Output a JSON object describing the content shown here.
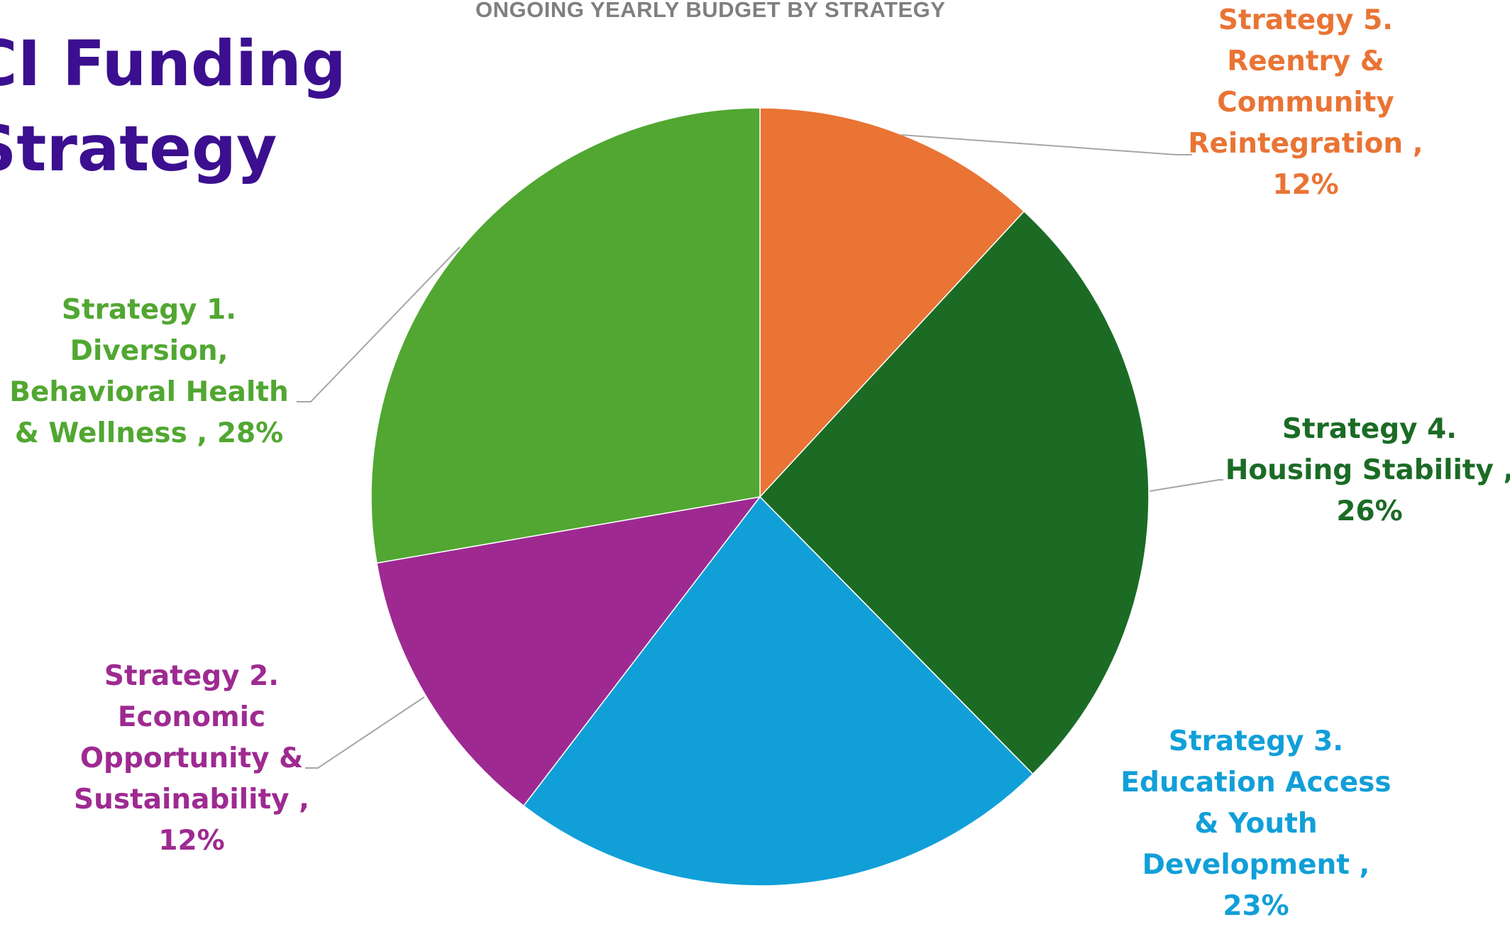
{
  "page": {
    "title_lines": [
      "CI Funding",
      "Strategy"
    ]
  },
  "chart_data": {
    "type": "pie",
    "title": "ONGOING YEARLY BUDGET BY STRATEGY",
    "start_angle_deg": 0,
    "direction": "clockwise",
    "slices": [
      {
        "label": "Strategy 5. Reentry & Community Reintegration",
        "value": 12,
        "value_label": "12%",
        "color": "#e97434",
        "label_lines": [
          "Strategy 5.",
          "Reentry &",
          "Community",
          "Reintegration ,",
          "12%"
        ]
      },
      {
        "label": "Strategy 4. Housing Stability",
        "value": 26,
        "value_label": "26%",
        "color": "#1b6b25",
        "label_lines": [
          "Strategy 4.",
          "Housing Stability ,",
          "26%"
        ]
      },
      {
        "label": "Strategy 3. Education Access & Youth Development",
        "value": 23,
        "value_label": "23%",
        "color": "#119fd8",
        "label_lines": [
          "Strategy 3.",
          "Education Access",
          "& Youth",
          "Development ,",
          "23%"
        ]
      },
      {
        "label": "Strategy 2. Economic Opportunity & Sustainability",
        "value": 12,
        "value_label": "12%",
        "color": "#9e2a91",
        "label_lines": [
          "Strategy 2.",
          "Economic",
          "Opportunity &",
          "Sustainability ,",
          "12%"
        ]
      },
      {
        "label": "Strategy 1. Diversion, Behavioral Health & Wellness",
        "value": 28,
        "value_label": "28%",
        "color": "#51a731",
        "label_lines": [
          "Strategy 1.",
          "Diversion,",
          "Behavioral Health",
          "& Wellness , 28%"
        ]
      }
    ],
    "legend": "none",
    "leader_line_color": "#a6a6a6"
  }
}
